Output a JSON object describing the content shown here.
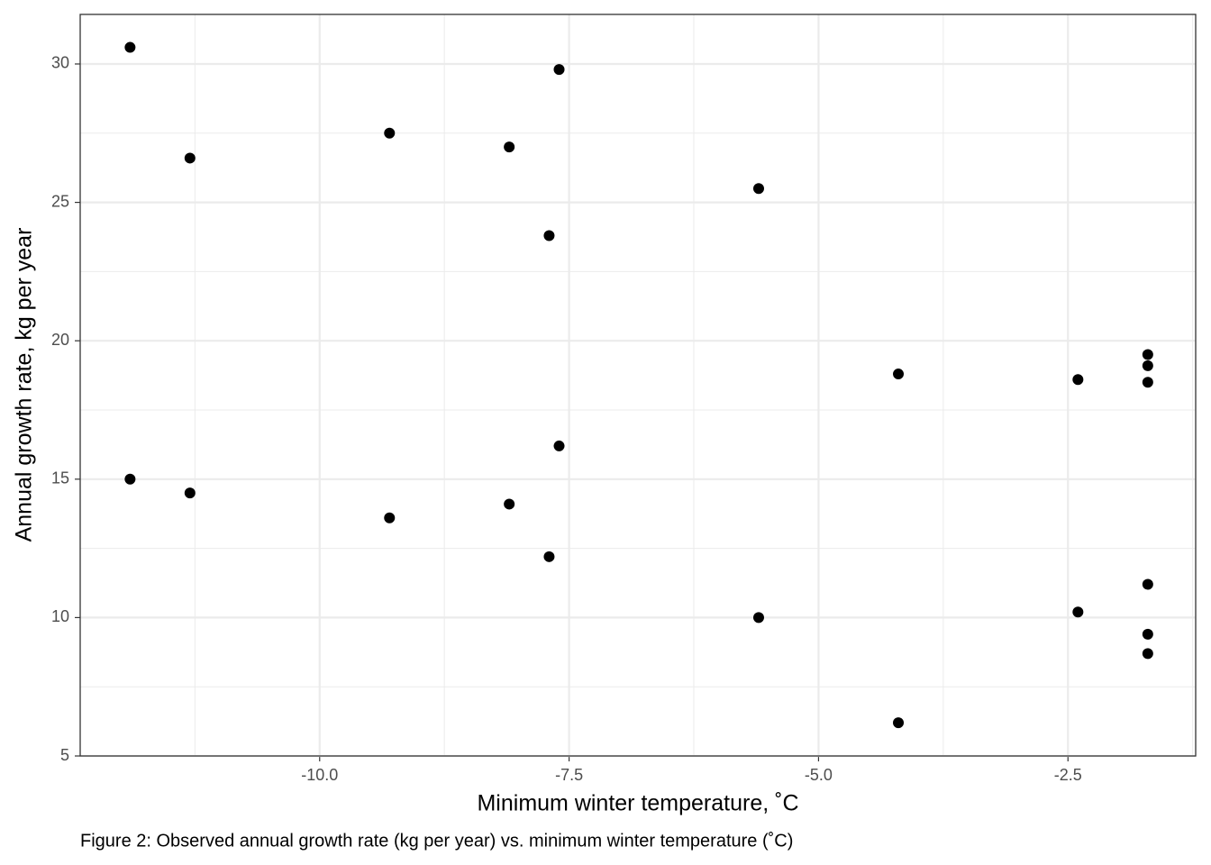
{
  "chart_data": {
    "type": "scatter",
    "x_label": "Minimum winter temperature, ˚C",
    "y_label": "Annual growth rate, kg per year",
    "caption": "Figure 2: Observed annual growth rate (kg per year) vs. minimum winter temperature (˚C)",
    "x": [
      -11.9,
      -11.9,
      -11.3,
      -11.3,
      -9.3,
      -9.3,
      -8.1,
      -8.1,
      -7.7,
      -7.7,
      -7.6,
      -7.6,
      -5.6,
      -5.6,
      -4.2,
      -4.2,
      -2.4,
      -2.4,
      -1.7,
      -1.7,
      -1.7,
      -1.7,
      -1.7,
      -1.7
    ],
    "values": [
      30.6,
      15.0,
      26.6,
      14.5,
      27.5,
      13.6,
      27.0,
      14.1,
      23.8,
      12.2,
      29.8,
      16.2,
      25.5,
      10.0,
      18.8,
      6.2,
      18.6,
      10.2,
      19.5,
      19.1,
      18.5,
      11.2,
      9.4,
      8.7
    ],
    "color": "#000000",
    "xlim": [
      -12.4,
      -1.22
    ],
    "ylim": [
      5,
      31.79
    ],
    "xticks": [
      {
        "value": -10,
        "label": "-10.0"
      },
      -7.5,
      {
        "value": -5,
        "label": "-5.0"
      },
      -2.5
    ],
    "yticks": [
      5,
      10,
      15,
      20,
      25,
      30
    ],
    "grid": true
  }
}
